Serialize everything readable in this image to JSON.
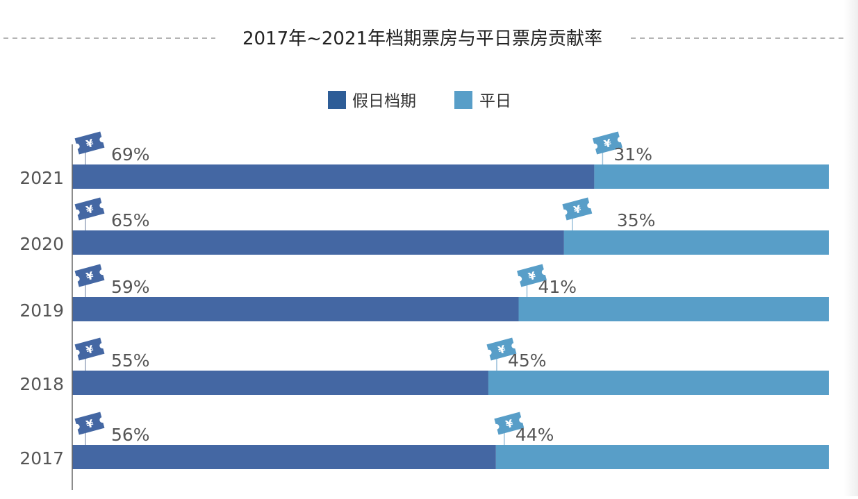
{
  "chart_data": {
    "type": "bar",
    "orientation": "horizontal",
    "stacked": true,
    "title": "2017年~2021年档期票房与平日票房贡献率",
    "categories": [
      "2021",
      "2020",
      "2019",
      "2018",
      "2017"
    ],
    "series": [
      {
        "name": "假日档期",
        "values": [
          69,
          65,
          59,
          55,
          56
        ]
      },
      {
        "name": "平日",
        "values": [
          31,
          35,
          41,
          45,
          44
        ]
      }
    ],
    "data_labels": [
      [
        "69%",
        "65%",
        "59%",
        "55%",
        "56%"
      ],
      [
        "31%",
        "35%",
        "41%",
        "45%",
        "44%"
      ]
    ],
    "xlim": [
      0,
      100
    ],
    "grid": false,
    "legend_position": "top",
    "ticket_icon": "ticket-icon",
    "ticket_symbol": "¥",
    "colors": {
      "holiday": "#4467a3",
      "weekday": "#589ec8",
      "holiday_legend": "#2e5d97",
      "text": "#555555",
      "title": "#222222",
      "dash": "#888888",
      "axis": "#666666"
    }
  }
}
